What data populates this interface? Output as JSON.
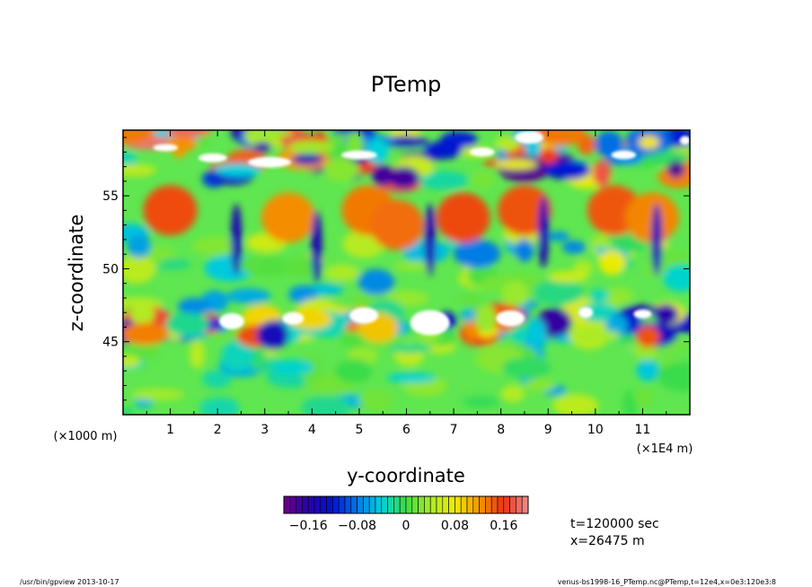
{
  "chart_data": {
    "type": "heatmap",
    "title": "PTemp",
    "xlabel": "y-coordinate",
    "ylabel": "z-coordinate",
    "x_unit_left": "(×1000 m)",
    "x_unit_right": "(×1E4 m)",
    "xlim": [
      0,
      12
    ],
    "ylim": [
      40,
      59.5
    ],
    "x_ticks": [
      1,
      2,
      3,
      4,
      5,
      6,
      7,
      8,
      9,
      10,
      11
    ],
    "x_tick_labels": [
      "1",
      "2",
      "3",
      "4",
      "5",
      "6",
      "7",
      "8",
      "9",
      "10",
      "11"
    ],
    "y_ticks": [
      45,
      50,
      55
    ],
    "y_tick_labels": [
      "45",
      "50",
      "55"
    ],
    "colorbar": {
      "min": -0.2,
      "max": 0.2,
      "step": 0.01,
      "tick_values": [
        -0.16,
        -0.08,
        0,
        0.08,
        0.16
      ],
      "tick_labels": [
        "−0.16",
        "−0.08",
        "0",
        "0.08",
        "0.16"
      ]
    },
    "colors": {
      "purple": "#5a007a",
      "blue": "#0000c8",
      "cyan": "#00c8dc",
      "green": "#32dc32",
      "yellow": "#f0f000",
      "orange": "#f07800",
      "red": "#e61414",
      "pink": "#f08080"
    }
  },
  "annotations": {
    "time": "t=120000 sec",
    "position": "x=26475 m"
  },
  "footer": {
    "left": "/usr/bin/gpview  2013-10-17",
    "right": "venus-bs1998-16_PTemp.nc@PTemp,t=12e4,x=0e3:120e3:8"
  }
}
